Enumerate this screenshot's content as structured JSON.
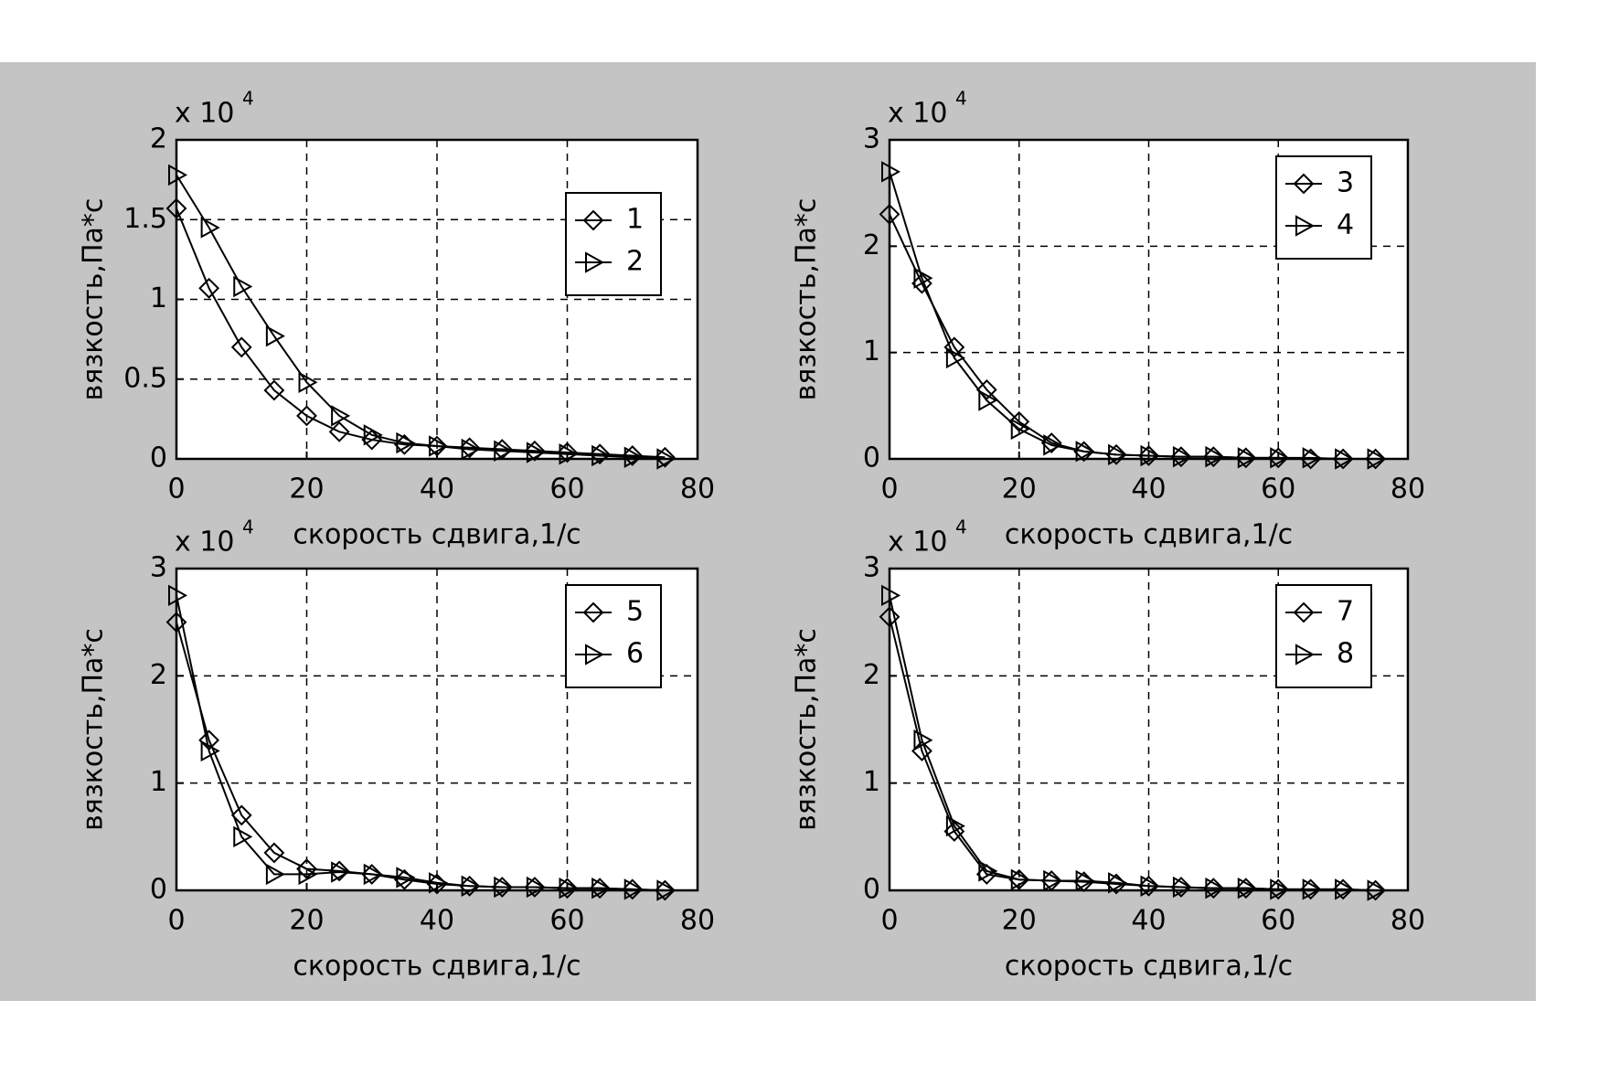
{
  "chart_data": [
    {
      "type": "line",
      "y_scale_label": {
        "base": "x 10",
        "exponent": "4"
      },
      "xlabel": "скорость сдвига,1/с",
      "ylabel": "вязкость,Па*с",
      "x": [
        0,
        5,
        10,
        15,
        20,
        25,
        30,
        35,
        40,
        45,
        50,
        55,
        60,
        65,
        70,
        75
      ],
      "xlim": [
        0,
        80
      ],
      "xticks": [
        0,
        20,
        40,
        60,
        80
      ],
      "ylim": [
        0,
        2
      ],
      "yticks": [
        0,
        0.5,
        1,
        1.5,
        2
      ],
      "grid": true,
      "legend": "upper right",
      "series": [
        {
          "name": "1",
          "color": "#000000",
          "marker": "diamond",
          "values": [
            1.57,
            1.07,
            0.7,
            0.43,
            0.27,
            0.17,
            0.12,
            0.09,
            0.08,
            0.07,
            0.06,
            0.05,
            0.04,
            0.03,
            0.02,
            0.01
          ]
        },
        {
          "name": "2",
          "color": "#000000",
          "marker": "triangle-right",
          "values": [
            1.78,
            1.45,
            1.08,
            0.77,
            0.48,
            0.27,
            0.15,
            0.1,
            0.08,
            0.06,
            0.05,
            0.04,
            0.03,
            0.02,
            0.01,
            0
          ]
        }
      ]
    },
    {
      "type": "line",
      "y_scale_label": {
        "base": "x 10",
        "exponent": "4"
      },
      "xlabel": "скорость сдвига,1/с",
      "ylabel": "вязкость,Па*с",
      "x": [
        0,
        5,
        10,
        15,
        20,
        25,
        30,
        35,
        40,
        45,
        50,
        55,
        60,
        65,
        70,
        75
      ],
      "xlim": [
        0,
        80
      ],
      "xticks": [
        0,
        20,
        40,
        60,
        80
      ],
      "ylim": [
        0,
        3
      ],
      "yticks": [
        0,
        1,
        2,
        3
      ],
      "grid": true,
      "legend": "upper right",
      "series": [
        {
          "name": "3",
          "color": "#000000",
          "marker": "diamond",
          "values": [
            2.3,
            1.65,
            1.05,
            0.65,
            0.35,
            0.15,
            0.07,
            0.04,
            0.03,
            0.02,
            0.02,
            0.01,
            0.01,
            0,
            0,
            0
          ]
        },
        {
          "name": "4",
          "color": "#000000",
          "marker": "triangle-right",
          "values": [
            2.7,
            1.7,
            0.95,
            0.55,
            0.28,
            0.13,
            0.07,
            0.04,
            0.03,
            0.02,
            0.02,
            0.01,
            0.01,
            0.01,
            0,
            0
          ]
        }
      ]
    },
    {
      "type": "line",
      "y_scale_label": {
        "base": "x 10",
        "exponent": "4"
      },
      "xlabel": "скорость сдвига,1/с",
      "ylabel": "вязкость,Па*с",
      "x": [
        0,
        5,
        10,
        15,
        20,
        25,
        30,
        35,
        40,
        45,
        50,
        55,
        60,
        65,
        70,
        75
      ],
      "xlim": [
        0,
        80
      ],
      "xticks": [
        0,
        20,
        40,
        60,
        80
      ],
      "ylim": [
        0,
        3
      ],
      "yticks": [
        0,
        1,
        2,
        3
      ],
      "grid": true,
      "legend": "upper right",
      "series": [
        {
          "name": "5",
          "color": "#000000",
          "marker": "diamond",
          "values": [
            2.5,
            1.4,
            0.7,
            0.35,
            0.2,
            0.18,
            0.15,
            0.1,
            0.06,
            0.04,
            0.03,
            0.03,
            0.02,
            0.02,
            0.01,
            0
          ]
        },
        {
          "name": "6",
          "color": "#000000",
          "marker": "triangle-right",
          "values": [
            2.75,
            1.3,
            0.5,
            0.15,
            0.15,
            0.17,
            0.15,
            0.12,
            0.07,
            0.04,
            0.03,
            0.03,
            0.02,
            0.02,
            0.01,
            0
          ]
        }
      ]
    },
    {
      "type": "line",
      "y_scale_label": {
        "base": "x 10",
        "exponent": "4"
      },
      "xlabel": "скорость сдвига,1/с",
      "ylabel": "вязкость,Па*с",
      "x": [
        0,
        5,
        10,
        15,
        20,
        25,
        30,
        35,
        40,
        45,
        50,
        55,
        60,
        65,
        70,
        75
      ],
      "xlim": [
        0,
        80
      ],
      "xticks": [
        0,
        20,
        40,
        60,
        80
      ],
      "ylim": [
        0,
        3
      ],
      "yticks": [
        0,
        1,
        2,
        3
      ],
      "grid": true,
      "legend": "upper right",
      "series": [
        {
          "name": "7",
          "color": "#000000",
          "marker": "diamond",
          "values": [
            2.55,
            1.3,
            0.55,
            0.15,
            0.1,
            0.09,
            0.08,
            0.06,
            0.04,
            0.03,
            0.02,
            0.02,
            0.01,
            0.01,
            0.01,
            0
          ]
        },
        {
          "name": "8",
          "color": "#000000",
          "marker": "triangle-right",
          "values": [
            2.75,
            1.4,
            0.6,
            0.18,
            0.1,
            0.09,
            0.09,
            0.07,
            0.04,
            0.03,
            0.02,
            0.02,
            0.01,
            0.01,
            0.01,
            0
          ]
        }
      ]
    }
  ]
}
